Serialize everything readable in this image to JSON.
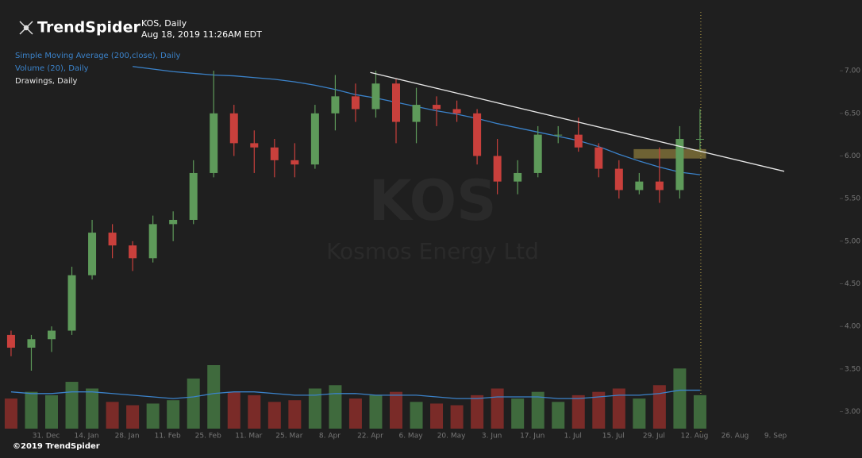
{
  "chart_data": {
    "type": "candlestick",
    "brand": "TrendSpider",
    "title": "KOS, Daily",
    "subtitle": "Aug 18, 2019 11:26AM EDT",
    "drawings_label": "Drawings, Daily",
    "copyright": "©2019 TrendSpider",
    "watermark": [
      "KOS",
      "Kosmos Energy Ltd"
    ],
    "up_color": "#5e9a5a",
    "down_color": "#c9403c",
    "x": [
      "17 Dec",
      "24 Dec",
      "31 Dec",
      "7 Jan",
      "14 Jan",
      "21 Jan",
      "28 Jan",
      "4 Feb",
      "11 Feb",
      "18 Feb",
      "25 Feb",
      "4 Mar",
      "11 Mar",
      "18 Mar",
      "25 Mar",
      "1 Apr",
      "8 Apr",
      "15 Apr",
      "22 Apr",
      "29 Apr",
      "6 May",
      "13 May",
      "20 May",
      "27 May",
      "3 Jun",
      "10 Jun",
      "17 Jun",
      "24 Jun",
      "1 Jul",
      "8 Jul",
      "15 Jul",
      "22 Jul",
      "29 Jul",
      "5 Aug",
      "12 Aug"
    ],
    "open": [
      3.9,
      3.75,
      3.85,
      3.95,
      4.6,
      5.1,
      4.95,
      4.8,
      5.2,
      5.25,
      5.8,
      6.5,
      6.15,
      6.1,
      5.95,
      5.9,
      6.5,
      6.7,
      6.55,
      6.85,
      6.4,
      6.6,
      6.55,
      6.5,
      6.0,
      5.7,
      5.8,
      6.25,
      6.25,
      6.1,
      5.85,
      5.6,
      5.7,
      5.6,
      6.2
    ],
    "high": [
      3.95,
      3.9,
      4.0,
      4.7,
      5.25,
      5.2,
      5.0,
      5.3,
      5.35,
      5.95,
      7.0,
      6.6,
      6.3,
      6.2,
      6.15,
      6.6,
      6.95,
      6.85,
      7.0,
      6.9,
      6.8,
      6.7,
      6.65,
      6.55,
      6.2,
      5.95,
      6.35,
      6.35,
      6.45,
      6.15,
      5.95,
      5.8,
      6.1,
      6.35,
      6.55
    ],
    "low": [
      3.65,
      3.48,
      3.7,
      3.9,
      4.55,
      4.8,
      4.65,
      4.75,
      5.0,
      5.2,
      5.75,
      6.0,
      5.8,
      5.75,
      5.75,
      5.85,
      6.3,
      6.4,
      6.45,
      6.15,
      6.15,
      6.35,
      6.4,
      5.9,
      5.55,
      5.55,
      5.75,
      6.15,
      6.05,
      5.75,
      5.5,
      5.55,
      5.45,
      5.5,
      6.05
    ],
    "close": [
      3.75,
      3.85,
      3.95,
      4.6,
      5.1,
      4.95,
      4.8,
      5.2,
      5.25,
      5.8,
      6.5,
      6.15,
      6.1,
      5.95,
      5.9,
      6.5,
      6.7,
      6.55,
      6.85,
      6.4,
      6.6,
      6.55,
      6.5,
      6.0,
      5.7,
      5.8,
      6.25,
      6.25,
      6.1,
      5.85,
      5.6,
      5.7,
      5.6,
      6.2,
      6.2
    ],
    "volume": [
      18,
      22,
      20,
      28,
      24,
      16,
      14,
      15,
      17,
      30,
      38,
      22,
      20,
      16,
      17,
      24,
      26,
      18,
      20,
      22,
      16,
      15,
      14,
      20,
      24,
      18,
      22,
      16,
      20,
      22,
      24,
      18,
      26,
      36,
      20
    ],
    "indicators": [
      {
        "name": "Simple Moving Average (200,close), Daily",
        "color": "#3b82c9",
        "pane": "price",
        "values": [
          null,
          null,
          null,
          null,
          null,
          null,
          7.05,
          7.02,
          6.99,
          6.97,
          6.95,
          6.94,
          6.92,
          6.9,
          6.87,
          6.83,
          6.78,
          6.72,
          6.68,
          6.63,
          6.58,
          6.53,
          6.49,
          6.44,
          6.38,
          6.33,
          6.28,
          6.23,
          6.18,
          6.11,
          6.02,
          5.94,
          5.87,
          5.81,
          5.78
        ]
      },
      {
        "name": "Volume (20), Daily",
        "color": "#3b82c9",
        "pane": "volume",
        "values": [
          22,
          21,
          21,
          22,
          22,
          21,
          20,
          19,
          18,
          19,
          21,
          22,
          22,
          21,
          20,
          20,
          21,
          21,
          20,
          20,
          20,
          19,
          18,
          18,
          19,
          19,
          19,
          18,
          18,
          19,
          20,
          20,
          21,
          23,
          23
        ]
      }
    ],
    "trendline": {
      "x": [
        "22 Apr",
        "12 Sep"
      ],
      "y": [
        6.98,
        5.82
      ],
      "color": "#e6e6e6"
    },
    "zone": {
      "x": [
        "22 Jul",
        "16 Aug"
      ],
      "y": [
        5.97,
        6.08
      ],
      "color": "#8a7a3c"
    },
    "ylim": [
      2.8,
      7.7
    ],
    "yticks": [
      {
        "value": 3,
        "label": "3.00"
      },
      {
        "value": 3.5,
        "label": "3.50"
      },
      {
        "value": 4,
        "label": "4.00"
      },
      {
        "value": 4.5,
        "label": "4.50"
      },
      {
        "value": 5,
        "label": "5.00"
      },
      {
        "value": 5.5,
        "label": "5.50"
      },
      {
        "value": 6,
        "label": "6.00"
      },
      {
        "value": 6.5,
        "label": "6.50"
      },
      {
        "value": 7,
        "label": "7.00"
      }
    ],
    "xticks": [
      "31. Dec",
      "14. Jan",
      "28. Jan",
      "11. Feb",
      "25. Feb",
      "11. Mar",
      "25. Mar",
      "8. Apr",
      "22. Apr",
      "6. May",
      "20. May",
      "3. Jun",
      "17. Jun",
      "1. Jul",
      "15. Jul",
      "29. Jul",
      "12. Aug",
      "26. Aug",
      "9. Sep"
    ]
  }
}
